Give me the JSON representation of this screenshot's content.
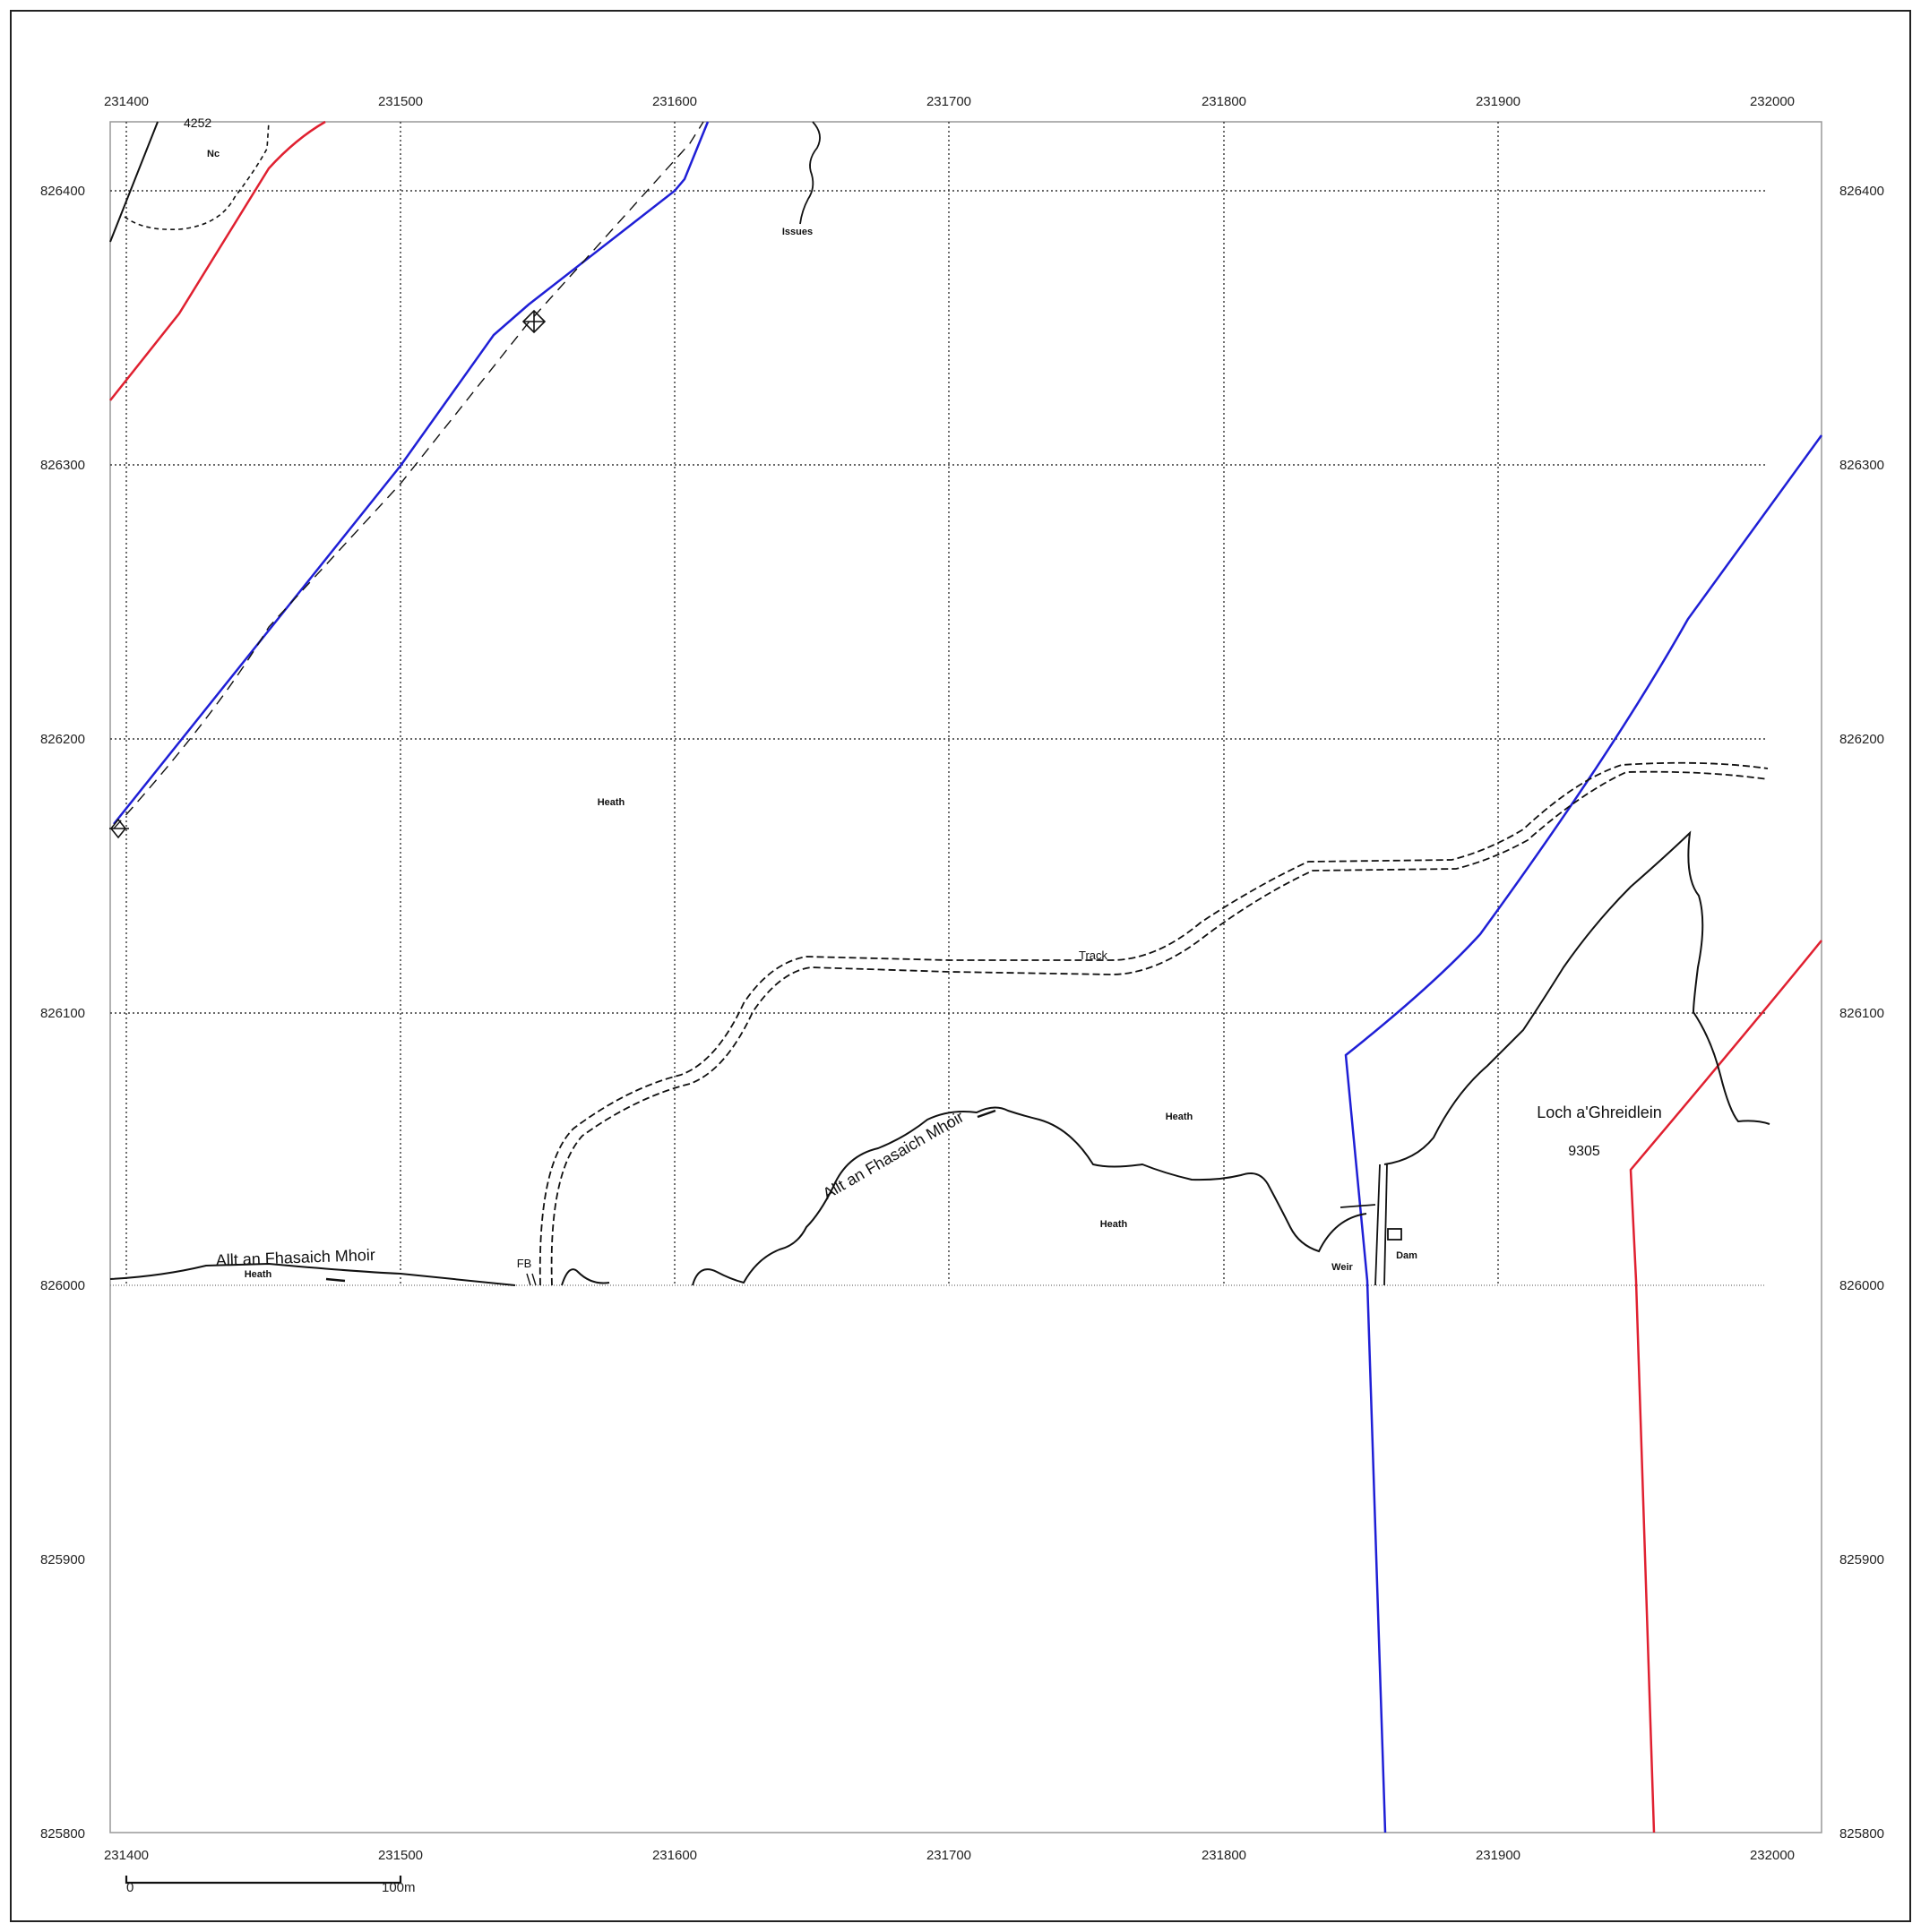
{
  "grid": {
    "eastings": [
      "231400",
      "231500",
      "231600",
      "231700",
      "231800",
      "231900",
      "232000"
    ],
    "northings": [
      "826400",
      "826300",
      "826200",
      "826100",
      "826000",
      "825900",
      "825800"
    ]
  },
  "labels": {
    "parcel_number_top": "4252",
    "nc": "Nc",
    "issues": "Issues",
    "heath": "Heath",
    "track": "Track",
    "river_west": "Allt an Fhasaich Mhoir",
    "river_east": "Allt an Fhasaich Mhoir",
    "fb": "FB",
    "weir": "Weir",
    "dam": "Dam",
    "loch_name": "Loch a'Ghreidlein",
    "loch_number": "9305"
  },
  "scale_bar": {
    "start": "0",
    "end": "100m"
  },
  "colors": {
    "boundary_blue": "#1f1fd6",
    "boundary_red": "#e02030",
    "linework": "#111111",
    "grid": "#333333"
  }
}
